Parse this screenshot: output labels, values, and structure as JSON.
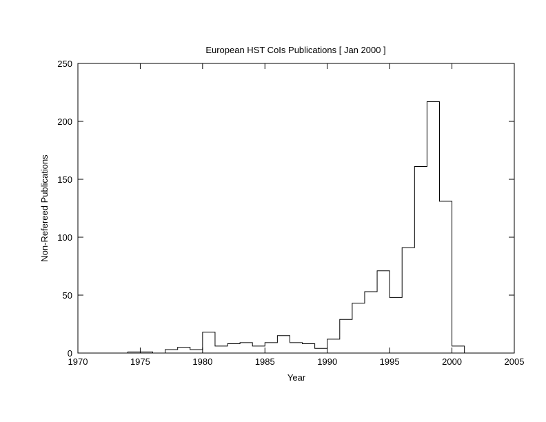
{
  "chart_data": {
    "type": "bar",
    "style": "step-histogram",
    "title": "European HST CoIs Publications [ Jan 2000 ]",
    "xlabel": "Year",
    "ylabel": "Non-Refereed Publications",
    "xlim": [
      1970,
      2005
    ],
    "ylim": [
      0,
      250
    ],
    "xticks": [
      "1970",
      "1975",
      "1980",
      "1985",
      "1990",
      "1995",
      "2000",
      "2005"
    ],
    "yticks": [
      "0",
      "50",
      "100",
      "150",
      "200",
      "250"
    ],
    "grid": false,
    "bins": [
      {
        "year": 1974,
        "value": 1
      },
      {
        "year": 1975,
        "value": 1
      },
      {
        "year": 1976,
        "value": 0
      },
      {
        "year": 1977,
        "value": 3
      },
      {
        "year": 1978,
        "value": 5
      },
      {
        "year": 1979,
        "value": 3
      },
      {
        "year": 1980,
        "value": 18
      },
      {
        "year": 1981,
        "value": 6
      },
      {
        "year": 1982,
        "value": 8
      },
      {
        "year": 1983,
        "value": 9
      },
      {
        "year": 1984,
        "value": 6
      },
      {
        "year": 1985,
        "value": 9
      },
      {
        "year": 1986,
        "value": 15
      },
      {
        "year": 1987,
        "value": 9
      },
      {
        "year": 1988,
        "value": 8
      },
      {
        "year": 1989,
        "value": 4
      },
      {
        "year": 1990,
        "value": 12
      },
      {
        "year": 1991,
        "value": 29
      },
      {
        "year": 1992,
        "value": 43
      },
      {
        "year": 1993,
        "value": 53
      },
      {
        "year": 1994,
        "value": 71
      },
      {
        "year": 1995,
        "value": 48
      },
      {
        "year": 1996,
        "value": 91
      },
      {
        "year": 1997,
        "value": 161
      },
      {
        "year": 1998,
        "value": 217
      },
      {
        "year": 1999,
        "value": 131
      },
      {
        "year": 2000,
        "value": 6
      }
    ]
  }
}
